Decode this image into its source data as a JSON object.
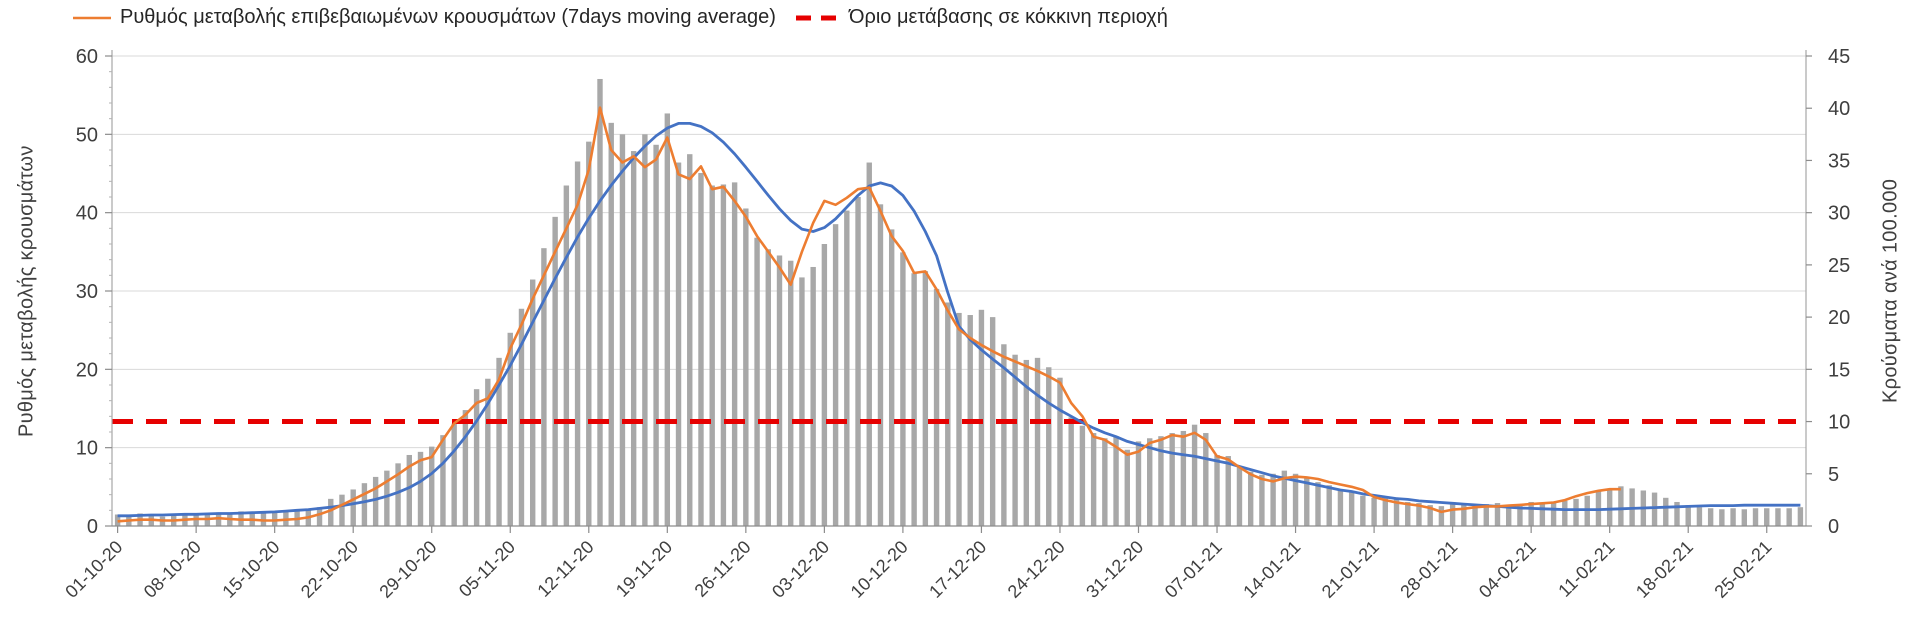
{
  "legend": [
    {
      "label": "Ρυθμός μεταβολής επιβεβαιωμένων κρουσμάτων (7days moving average)",
      "color": "#ED7D31",
      "style": "line"
    },
    {
      "label": "Όριο μετάβασης σε κόκκινη περιοχή",
      "color": "#E60000",
      "style": "dashed-line"
    }
  ],
  "chart_data": {
    "type": "combo-bar-line",
    "title": "",
    "grid": "horizontal",
    "legend_position": "top",
    "x": {
      "frequency": "daily",
      "start_date": "01-10-20",
      "end_date": "28-02-21",
      "tick_labels": [
        "01-10-20",
        "08-10-20",
        "15-10-20",
        "22-10-20",
        "29-10-20",
        "05-11-20",
        "12-11-20",
        "19-11-20",
        "26-11-20",
        "03-12-20",
        "10-12-20",
        "17-12-20",
        "24-12-20",
        "31-12-20",
        "07-01-21",
        "14-01-21",
        "21-01-21",
        "28-01-21",
        "04-02-21",
        "11-02-21",
        "18-02-21",
        "25-02-21"
      ]
    },
    "y_left": {
      "label": "Ρυθμός μεταβολής κρουσμάτων",
      "min": 0,
      "max": 60,
      "ticks": [
        0,
        10,
        20,
        30,
        40,
        50,
        60
      ]
    },
    "y_right": {
      "label": "Κρούσματα ανά 100.000",
      "min": 0,
      "max": 45,
      "ticks": [
        0,
        5,
        10,
        15,
        20,
        25,
        30,
        35,
        40,
        45
      ]
    },
    "threshold": {
      "axis": "right",
      "value": 10,
      "color": "#E60000",
      "label": "Όριο μετάβασης σε κόκκινη περιοχή"
    },
    "series": [
      {
        "id": "daily-cases-bars",
        "type": "bar",
        "axis": "right",
        "color": "#a8a8a8",
        "values": [
          1.1,
          1.0,
          1.2,
          1.1,
          0.9,
          1.1,
          1.2,
          1.2,
          1.1,
          1.3,
          1.2,
          1.4,
          1.3,
          1.2,
          1.4,
          1.5,
          1.6,
          1.5,
          1.8,
          2.6,
          3.0,
          3.5,
          4.1,
          4.7,
          5.3,
          6.0,
          6.8,
          7.1,
          7.6,
          8.7,
          9.8,
          11.1,
          13.1,
          14.1,
          16.1,
          18.5,
          20.8,
          23.6,
          26.6,
          29.6,
          32.6,
          34.9,
          36.8,
          42.8,
          38.6,
          37.5,
          35.9,
          37.5,
          36.5,
          39.5,
          34.8,
          35.6,
          33.8,
          32.6,
          32.7,
          32.9,
          30.4,
          27.6,
          26.5,
          25.9,
          25.4,
          23.8,
          24.8,
          27.0,
          28.9,
          30.2,
          31.5,
          34.8,
          30.8,
          28.4,
          26.2,
          24.2,
          24.4,
          22.7,
          21.4,
          20.4,
          20.2,
          20.7,
          20.0,
          17.4,
          16.4,
          15.9,
          16.1,
          15.2,
          14.2,
          10.4,
          9.6,
          8.9,
          8.4,
          8.6,
          7.3,
          8.1,
          8.4,
          8.6,
          8.9,
          9.1,
          9.7,
          8.9,
          6.8,
          6.7,
          5.7,
          5.2,
          4.9,
          5.0,
          5.3,
          5.0,
          4.6,
          4.2,
          3.9,
          3.5,
          3.2,
          2.9,
          2.7,
          2.7,
          2.6,
          2.3,
          2.2,
          2.0,
          1.9,
          2.3,
          2.2,
          2.1,
          2.1,
          2.2,
          2.0,
          2.1,
          2.3,
          2.2,
          2.3,
          2.4,
          2.6,
          2.9,
          3.3,
          3.5,
          3.8,
          3.6,
          3.4,
          3.2,
          2.7,
          2.3,
          2.0,
          1.8,
          1.7,
          1.6,
          1.7,
          1.6,
          1.7,
          1.7,
          1.7,
          1.7,
          1.8
        ]
      },
      {
        "id": "7day-moving-average",
        "label": "Ρυθμός μεταβολής επιβεβαιωμένων κρουσμάτων (7days moving average)",
        "type": "line",
        "axis": "left",
        "color": "#ED7D31",
        "values": [
          0.6,
          0.7,
          0.8,
          0.8,
          0.7,
          0.7,
          0.8,
          0.9,
          0.9,
          1.0,
          0.9,
          0.8,
          0.8,
          0.7,
          0.7,
          0.8,
          0.9,
          1.1,
          1.5,
          2.0,
          2.7,
          3.4,
          4.1,
          4.8,
          5.7,
          6.6,
          7.6,
          8.4,
          8.8,
          11.0,
          13.1,
          14.2,
          15.7,
          16.3,
          18.7,
          22.7,
          25.7,
          29.0,
          32.0,
          35.0,
          38.0,
          41.0,
          45.5,
          53.4,
          48.0,
          46.4,
          47.2,
          45.8,
          46.8,
          49.6,
          44.9,
          44.3,
          45.9,
          43.0,
          43.3,
          41.5,
          39.5,
          37.0,
          35.0,
          33.0,
          30.8,
          35.0,
          38.7,
          41.5,
          41.0,
          41.9,
          43.0,
          43.2,
          40.2,
          37.0,
          35.1,
          32.3,
          32.5,
          30.2,
          27.5,
          25.1,
          24.0,
          23.1,
          22.3,
          21.6,
          21.0,
          20.4,
          19.8,
          19.1,
          18.3,
          15.7,
          14.0,
          11.4,
          11.0,
          10.1,
          9.1,
          9.5,
          10.6,
          11.0,
          11.6,
          11.4,
          11.9,
          11.0,
          8.9,
          8.5,
          7.5,
          6.6,
          6.0,
          5.7,
          6.1,
          6.3,
          6.2,
          6.0,
          5.6,
          5.3,
          5.0,
          4.6,
          3.7,
          3.3,
          3.0,
          2.8,
          2.6,
          2.3,
          1.8,
          2.1,
          2.2,
          2.4,
          2.5,
          2.5,
          2.6,
          2.7,
          2.8,
          2.9,
          3.0,
          3.3,
          3.8,
          4.2,
          4.5,
          4.7,
          4.7,
          null,
          null,
          null,
          null,
          null,
          null,
          null,
          null,
          null,
          null,
          null,
          null,
          null,
          null,
          null,
          null
        ]
      },
      {
        "id": "trend-line",
        "type": "line",
        "axis": "left",
        "color": "#4472C4",
        "values": [
          1.3,
          1.3,
          1.35,
          1.4,
          1.4,
          1.45,
          1.5,
          1.5,
          1.55,
          1.6,
          1.6,
          1.65,
          1.7,
          1.75,
          1.8,
          1.9,
          2.0,
          2.1,
          2.25,
          2.4,
          2.6,
          2.85,
          3.1,
          3.4,
          3.8,
          4.3,
          4.9,
          5.7,
          6.7,
          8.0,
          9.6,
          11.4,
          13.4,
          15.6,
          18.0,
          20.5,
          23.2,
          26.0,
          28.8,
          31.6,
          34.3,
          36.9,
          39.3,
          41.5,
          43.5,
          45.3,
          47.0,
          48.5,
          49.8,
          50.8,
          51.4,
          51.4,
          51.0,
          50.2,
          49.0,
          47.5,
          45.8,
          44.0,
          42.2,
          40.5,
          39.0,
          37.9,
          37.6,
          38.1,
          39.2,
          40.7,
          42.2,
          43.4,
          43.8,
          43.4,
          42.2,
          40.2,
          37.6,
          34.5,
          29.8,
          25.5,
          23.8,
          22.5,
          21.3,
          20.2,
          19.0,
          17.8,
          16.7,
          15.7,
          14.8,
          14.0,
          13.2,
          12.5,
          11.9,
          11.4,
          10.8,
          10.4,
          10.0,
          9.6,
          9.3,
          9.1,
          8.9,
          8.6,
          8.3,
          8.0,
          7.6,
          7.2,
          6.8,
          6.4,
          6.1,
          5.8,
          5.5,
          5.2,
          4.9,
          4.6,
          4.4,
          4.1,
          3.9,
          3.7,
          3.5,
          3.4,
          3.2,
          3.1,
          3.0,
          2.9,
          2.8,
          2.7,
          2.6,
          2.5,
          2.4,
          2.3,
          2.25,
          2.2,
          2.15,
          2.1,
          2.1,
          2.1,
          2.1,
          2.15,
          2.2,
          2.25,
          2.3,
          2.35,
          2.4,
          2.45,
          2.5,
          2.55,
          2.6,
          2.6,
          2.6,
          2.65,
          2.65,
          2.65,
          2.65,
          2.65,
          2.65
        ]
      }
    ]
  }
}
